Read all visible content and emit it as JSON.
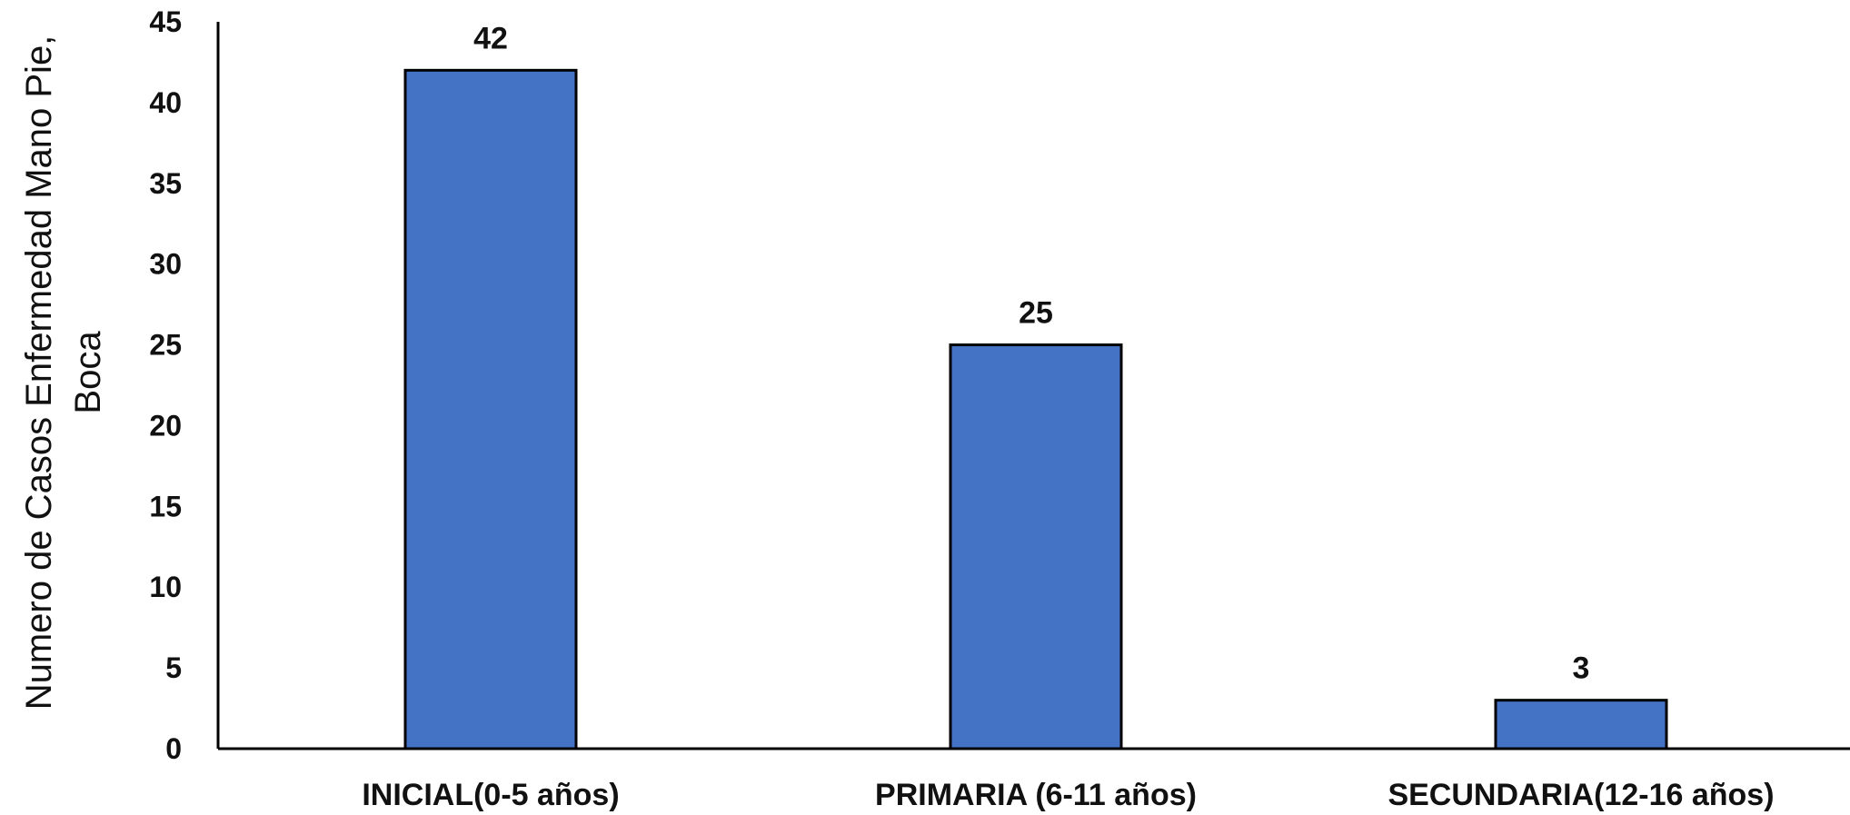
{
  "chart_data": {
    "type": "bar",
    "categories": [
      "INICIAL(0-5 años)",
      "PRIMARIA (6-11 años)",
      "SECUNDARIA(12-16 años)"
    ],
    "values": [
      42,
      25,
      3
    ],
    "data_labels": [
      "42",
      "25",
      "3"
    ],
    "ylabel_lines": [
      "Numero de Casos Enfermedad Mano Pie,",
      "Boca"
    ],
    "ylim": [
      0,
      45
    ],
    "yticks": [
      "0",
      "5",
      "10",
      "15",
      "20",
      "25",
      "30",
      "35",
      "40",
      "45"
    ],
    "grid": false,
    "legend": "none",
    "bar_color": "#4472C4",
    "bar_edge_color": "#000000"
  }
}
